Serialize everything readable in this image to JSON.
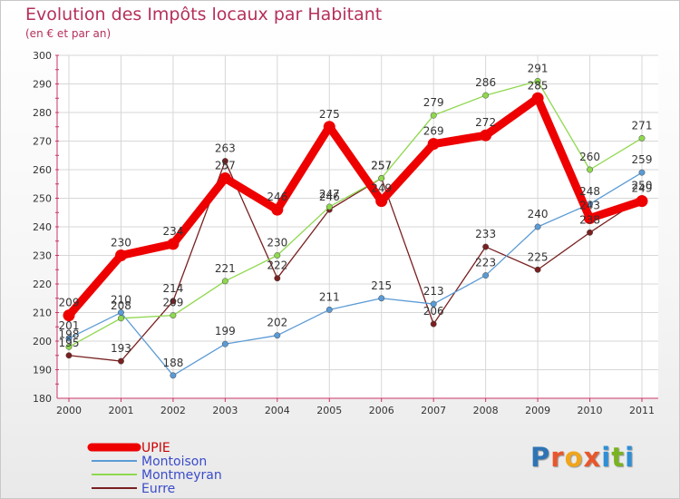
{
  "title": "Evolution des Impôts locaux par Habitant",
  "subtitle": "(en € et par an)",
  "logo": {
    "letters": [
      "P",
      "r",
      "o",
      "x",
      "i",
      "t",
      "i"
    ],
    "colors": [
      "#2e74b5",
      "#e8572b",
      "#f0a51c",
      "#e8572b",
      "#2e8fd6",
      "#79b321",
      "#2e8fd6"
    ]
  },
  "chart_data": {
    "type": "line",
    "title": "Evolution des Impôts locaux par Habitant",
    "subtitle": "(en € et par an)",
    "xlabel": "",
    "ylabel": "",
    "ylim": [
      180,
      300
    ],
    "ytick_step": 10,
    "grid": true,
    "legend_position": "bottom-left",
    "categories": [
      "2000",
      "2001",
      "2002",
      "2003",
      "2004",
      "2005",
      "2006",
      "2007",
      "2008",
      "2009",
      "2010",
      "2011"
    ],
    "series": [
      {
        "name": "UPIE",
        "color": "#ee0000",
        "values": [
          209,
          230,
          234,
          257,
          246,
          275,
          249,
          269,
          272,
          285,
          243,
          249
        ]
      },
      {
        "name": "Montoison",
        "color": "#5b9bd5",
        "values": [
          201,
          210,
          188,
          199,
          202,
          211,
          215,
          213,
          223,
          240,
          248,
          259
        ]
      },
      {
        "name": "Montmeyran",
        "color": "#8fd84e",
        "values": [
          198,
          208,
          209,
          221,
          230,
          247,
          257,
          279,
          286,
          291,
          260,
          271
        ]
      },
      {
        "name": "Eurre",
        "color": "#7a2020",
        "values": [
          195,
          193,
          214,
          263,
          222,
          246,
          257,
          206,
          233,
          225,
          238,
          250
        ]
      }
    ]
  }
}
